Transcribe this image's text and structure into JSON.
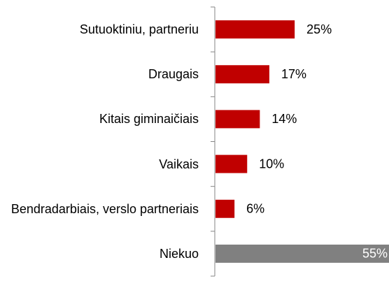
{
  "chart_data": {
    "type": "bar",
    "orientation": "horizontal",
    "categories": [
      "Sutuoktiniu, partneriu",
      "Draugais",
      "Kitais giminaičiais",
      "Vaikais",
      "Bendradarbiais, verslo partneriais",
      "Niekuo"
    ],
    "values": [
      25,
      17,
      14,
      10,
      6,
      55
    ],
    "value_labels": [
      "25%",
      "17%",
      "14%",
      "10%",
      "6%",
      "55%"
    ],
    "colors": [
      "#c00000",
      "#c00000",
      "#c00000",
      "#c00000",
      "#c00000",
      "#808080"
    ]
  }
}
